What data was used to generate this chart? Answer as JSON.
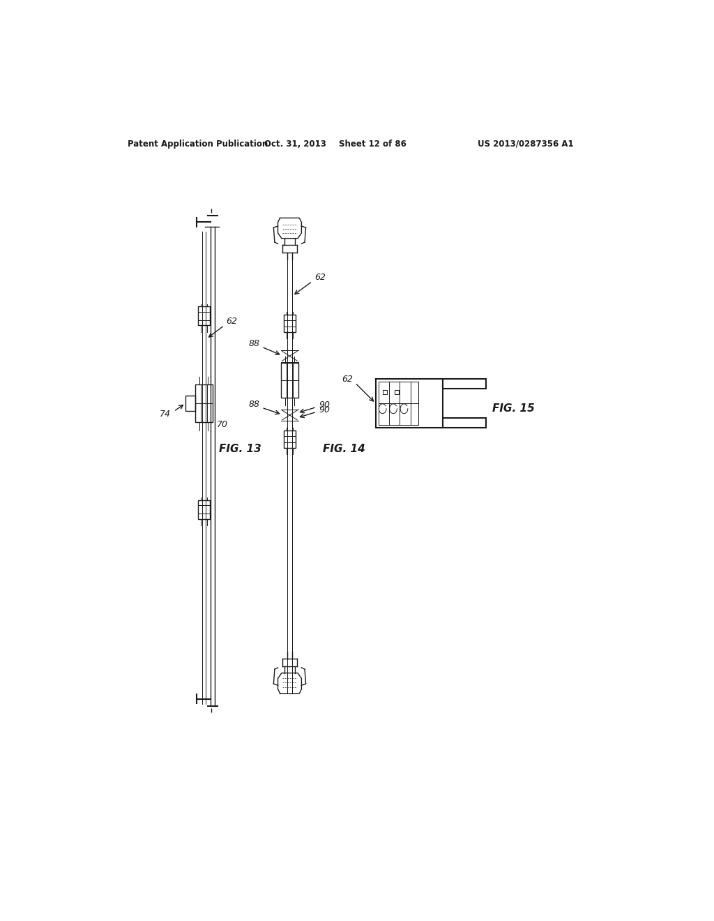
{
  "bg_color": "#ffffff",
  "header_text": "Patent Application Publication",
  "header_date": "Oct. 31, 2013",
  "header_sheet": "Sheet 12 of 86",
  "header_patent": "US 2013/0287356 A1",
  "fig13_label": "FIG. 13",
  "fig14_label": "FIG. 14",
  "fig15_label": "FIG. 15",
  "label_62_fig13": "62",
  "label_74": "74",
  "label_70": "70",
  "label_62_fig14": "62",
  "label_88_upper": "88",
  "label_88_lower": "88",
  "label_90_upper": "90",
  "label_90_lower": "90",
  "label_62_fig15": "62",
  "color": "#1a1a1a",
  "lw_thin": 0.7,
  "lw_med": 1.0,
  "lw_thick": 1.5
}
